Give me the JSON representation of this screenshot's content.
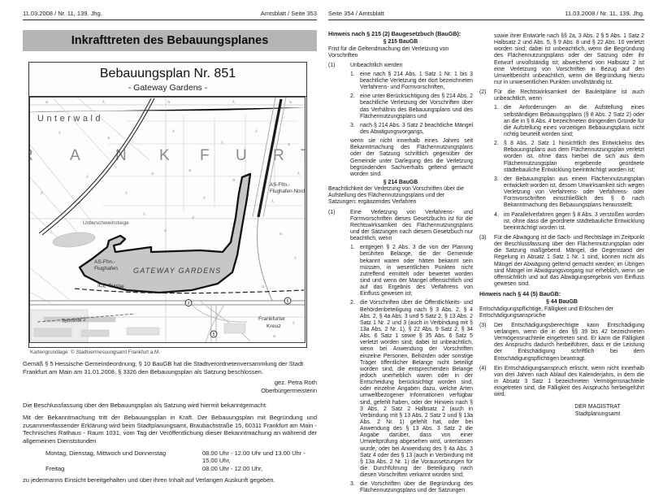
{
  "left_page": {
    "header_left": "11.03.2008 / Nr. 11, 139. Jhg.",
    "header_right": "Amtsblatt / Seite 353",
    "title": "Inkrafttreten des Bebauungsplanes",
    "map": {
      "title": "Bebauungsplan Nr. 851",
      "subtitle": "- Gateway Gardens -",
      "labels": {
        "unterwald": "Unterwald",
        "frankfurt_partial_left": "R",
        "frankfurt_letters": [
          "A",
          "N",
          "K",
          "F",
          "U",
          "R"
        ],
        "frankfurt_partial_right": "T",
        "unterschweinstiege": "Unterschweinstiege",
        "as_flughafen_nord_1": "AS-Ffm.-",
        "as_flughafen_nord_2": "Flughafen-Nord",
        "as_flughafen_1": "AS-Ffm.-",
        "as_flughafen_2": "Flughafen",
        "gateway_gardens": "GATEWAY GARDENS",
        "ice_trasse": "ICE-Trasse",
        "terminal_2": "Terminal 2",
        "frankfurter_kreuz_1": "Frankfurter",
        "frankfurter_kreuz_2": "Kreuz",
        "badge_a3": "3",
        "badge_a5": "5",
        "badge_a5b": "5"
      },
      "caption": "Kartengrundlage: © Stadtvermessungsamt Frankfurt a.M."
    },
    "p_gemaess": "Gemäß § 5 Hessische Gemeindeordnung, § 10 BauGB hat die Stadtverordnetenversammlung der Stadt Frankfurt am Main am 31.01.2008, § 3326 den Bebauungsplan als Satzung beschlossen.",
    "signature_1": "gez. Petra Roth",
    "signature_2": "Oberbürgermeisterin",
    "p_beschluss": "Die Beschlussfassung über den Bebauungsplan als Satzung wird hiermit bekanntgemacht.",
    "p_mit": "Mit der Bekanntmachung tritt der Bebauungsplan in Kraft. Der Bebauungsplan mit Begründung und zusammenfassender Erklärung wird beim Stadtplanungsamt, Braubachstraße 15, 60311 Frankfurt am Main - Technisches Rathaus - Raum 1031, vom Tag der Veröffentlichung dieser Bekanntmachung an während der allgemeinen Dienststunden",
    "hours": [
      {
        "days": "Montag, Dienstag, Mittwoch und Donnerstag",
        "time": "08.00 Uhr - 12.00 Uhr und 13.00 Uhr - 15.00 Uhr,"
      },
      {
        "days": "Freitag",
        "time": "08.00 Uhr - 12.00 Uhr,"
      }
    ],
    "p_final": "zu jedermanns Einsicht bereitgehalten und über ihren Inhalt auf Verlangen Auskunft gegeben."
  },
  "right_page": {
    "header_left": "Seite 354 / Amtsblatt",
    "header_right": "11.03.2008 / Nr. 11, 139. Jhg.",
    "col1": {
      "hinweis": "Hinweis nach § 215 (2) Baugesetzbuch (BauGB):",
      "s215_title": "§ 215 BauGB",
      "s215_sub": "Frist für die Geltendmachung der Verletzung von Vorschriften",
      "p1_marker": "(1)",
      "p1": "Unbeachtlich werden",
      "items1": [
        {
          "n": "1.",
          "t": "eine nach § 214 Abs. 1 Satz 1 Nr. 1 bis 3 beachtliche Verletzung der dort bezeichneten Verfahrens- und Formvorschriften,"
        },
        {
          "n": "2.",
          "t": "eine unter Berücksichtigung des § 214 Abs. 2 beachtliche Verletzung der Vorschriften über das Verhältnis des Bebauungsplans und des Flächennutzungsplans und"
        },
        {
          "n": "3.",
          "t": "nach § 214 Abs. 3 Satz 2 beachtliche Mängel des Abwägungsvorgangs,"
        }
      ],
      "cont1": "wenn sie nicht innerhalb eines Jahres seit Bekanntmachung des Flächennutzungsplans oder der Satzung schriftlich gegenüber der Gemeinde unter Darlegung des die Verletzung begründenden Sachverhalts geltend gemacht worden sind.",
      "s214_title": "§ 214 BauGB",
      "s214_sub": "Beachtlichkeit der Verletzung von Vorschriften über die Aufstellung des Flächennutzungsplans und der Satzungen; ergänzendes Verfahren",
      "p2_marker": "(1)",
      "p2": "Eine Verletzung von Verfahrens- und Formvorschriften dieses Gesetzbuchs ist für die Rechtswirksamkeit des Flächennutzungsplans und der Satzungen nach diesem Gesetzbuch nur beachtlich, wenn",
      "items2": [
        {
          "n": "1.",
          "t": "entgegen § 2 Abs. 3 die von der Planung berührten Belange, die der Gemeinde bekannt waren oder hätten bekannt sein müssen, in wesentlichen Punkten nicht zutreffend ermittelt oder bewertet worden sind und wenn der Mangel offensichtlich und auf das Ergebnis des Verfahrens von Einfluss gewesen ist;"
        },
        {
          "n": "2.",
          "t": "die Vorschriften über die Öffentlichkeits- und Behördenbeteiligung nach § 3 Abs. 2, § 4 Abs. 2, § 4a Abs. 3 und 5 Satz 2, § 13 Abs. 2 Satz 1 Nr. 2 und 3 (auch in Verbindung mit § 13a Abs. 2 Nr. 1), § 22 Abs. 9 Satz 2, § 34 Abs. 6 Satz 1 sowie § 35 Abs. 6 Satz 5 verletzt worden sind; dabei ist unbeachtlich, wenn bei Anwendung der Vorschriften einzelne Personen, Behörden oder sonstige Träger öffentlicher Belange nicht beteiligt worden sind, die entsprechenden Belange jedoch unerheblich waren oder in der Entscheidung berücksichtigt worden sind, oder einzelne Angaben dazu, welche Arten umweltbezogener Informationen verfügbar sind, gefehlt haben, oder der Hinweis nach § 3 Abs. 2 Satz 2 Halbsatz 2 (auch in Verbindung mit § 13 Abs. 2 Satz 2 und § 13a Abs. 2 Nr. 1) gefehlt hat, oder bei Anwendung des § 13 Abs. 3 Satz 2 die Angabe darüber, dass von einer Umweltprüfung abgesehen wird, unterlassen wurde, oder bei Anwendung des § 4a Abs. 3 Satz 4 oder des § 13 (auch in Verbindung mit § 13a Abs. 2 Nr. 1) die Voraussetzungen für die Durchführung der Beteiligung nach diesen Vorschriften verkannt worden sind;"
        },
        {
          "n": "3.",
          "t": "die Vorschriften über die Begründung des Flächennutzungsplans und der Satzungen"
        }
      ]
    },
    "col2": {
      "cont": "sowie ihrer Entwürfe nach §§ 2a, 3 Abs. 2 § 5 Abs. 1 Satz 2 Halbsatz 2 und Abs. 5, § 9 Abs. 8 und § 22 Abs. 10 verletzt worden sind; dabei ist unbeachtlich, wenn die Begründung des Flächennutzungsplans oder der Satzung oder ihr Entwurf unvollständig ist; abweichend von Halbsatz 2 ist eine Verletzung von Vorschriften in Bezug auf den Umweltbericht unbeachtlich, wenn die Begründung hierzu nur in unwesentlichen Punkten unvollständig ist.",
      "p2_marker": "(2)",
      "p2": "Für die Rechtswirksamkeit der Bauleitpläne ist auch unbeachtlich, wenn",
      "items": [
        {
          "n": "1.",
          "t": "die Anforderungen an die Aufstellung eines selbständigen Bebauungsplans (§ 8 Abs. 2 Satz 2) oder an die in § 8 Abs. 4 bezeichneten dringenden Gründe für die Aufstellung eines vorzeitigen Bebauungsplans nicht richtig beurteilt worden sind;"
        },
        {
          "n": "2.",
          "t": "§ 8 Abs. 2 Satz 1 hinsichtlich des Entwickelns des Bebauungsplans aus dem Flächennutzungsplan verletzt worden ist, ohne dass hierbei die sich aus dem Flächennutzungsplan ergebende geordnete städtebauliche Entwicklung beeinträchtigt worden ist;"
        },
        {
          "n": "3.",
          "t": "der Bebauungsplan aus einem Flächennutzungsplan entwickelt worden ist, dessen Unwirksamkeit sich wegen Verletzung von Verfahrens- oder Verfahrens- oder Formvorschriften einschließlich des § 6 nach Bekanntmachung des Bebauungsplans herausstellt;"
        },
        {
          "n": "4.",
          "t": "im Parallelverfahren gegen § 8 Abs. 3 verstoßen worden ist, ohne dass die geordnete städtebauliche Entwicklung beeinträchtigt worden ist."
        }
      ],
      "p3_marker": "(3)",
      "p3": "Für die Abwägung ist die Sach- und Rechtslage im Zeitpunkt der Beschlussfassung über den Flächennutzungsplan oder die Satzung maßgebend. Mängel, die Gegenstand der Regelung in Absatz 1 Satz 1 Nr. 1 sind, können nicht als Mängel der Abwägung geltend gemacht werden; im Übrigen sind Mängel im Abwägungsvorgang nur erheblich, wenn sie offensichtlich und auf das Abwägungsergebnis von Einfluss gewesen sind.",
      "hinweis44": "Hinweis nach § 44 (5) BauGB:",
      "s44_title": "§ 44 BauGB",
      "s44_sub": "Entschädigungspflichtige, Fälligkeit und Erlöschen der Entschädigungsansprüche",
      "p4_marker": "(3)",
      "p4": "Der Entschädigungsberechtigte kann Entschädigung verlangen, wenn die in den §§ 39 bis 42 bezeichneten Vermögensnachteile eingetreten sind. Er kann die Fälligkeit des Anspruchs dadurch herbeiführen, dass er die Leistung der Entschädigung schriftlich bei dem Entschädigungspflichtigen beantragt.",
      "p5_marker": "(4)",
      "p5": "Ein Entschädigungsanspruch erlischt, wenn nicht innerhalb von drei Jahren nach Ablauf des Kalenderjahrs, in dem die in Absatz 3 Satz 1 bezeichneten Vermögensnachteile eingetreten sind, die Fälligkeit des Anspruchs herbeigeführt wird.",
      "sig_1": "DER MAGISTRAT",
      "sig_2": "Stadtplanungsamt"
    }
  }
}
